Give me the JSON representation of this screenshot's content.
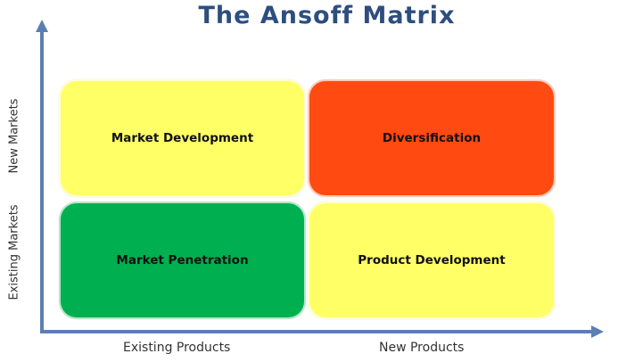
{
  "title": "The Ansoff Matrix",
  "colors": {
    "title": "#2d4e7e",
    "axis": "#5b7fb3",
    "yellow": "#ffff66",
    "red": "#ff4a12",
    "green": "#00b050"
  },
  "quadrants": {
    "top_left": {
      "label": "Market Development",
      "color": "#ffff66"
    },
    "top_right": {
      "label": "Diversification",
      "color": "#ff4a12"
    },
    "bottom_left": {
      "label": "Market Penetration",
      "color": "#00b050"
    },
    "bottom_right": {
      "label": "Product Development",
      "color": "#ffff66"
    }
  },
  "x_axis": {
    "left_label": "Existing Products",
    "right_label": "New Products"
  },
  "y_axis": {
    "top_label": "New Markets",
    "bottom_label": "Existing Markets"
  }
}
